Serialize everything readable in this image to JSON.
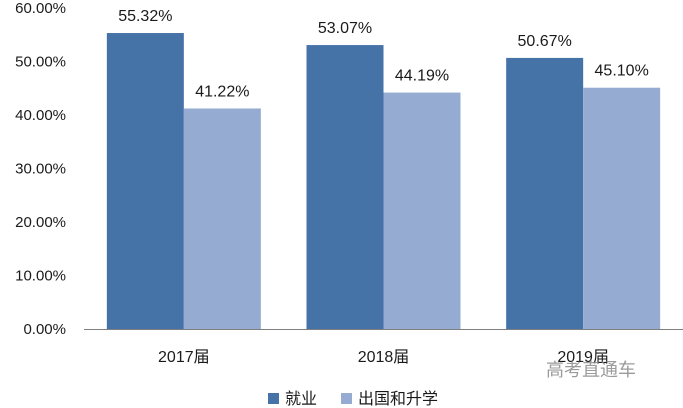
{
  "chart_data": {
    "type": "bar",
    "categories": [
      "2017届",
      "2018届",
      "2019届"
    ],
    "series": [
      {
        "name": "就业",
        "values": [
          55.32,
          53.07,
          50.67
        ],
        "labels": [
          "55.32%",
          "53.07%",
          "50.67%"
        ],
        "color": "#4572a7"
      },
      {
        "name": "出国和升学",
        "values": [
          41.22,
          44.19,
          45.1
        ],
        "labels": [
          "41.22%",
          "44.19%",
          "45.10%"
        ],
        "color": "#95abd1"
      }
    ],
    "ylim": [
      0,
      60
    ],
    "y_ticks": [
      0,
      10,
      20,
      30,
      40,
      50,
      60
    ],
    "y_tick_labels": [
      "0.00%",
      "10.00%",
      "20.00%",
      "30.00%",
      "40.00%",
      "50.00%",
      "60.00%"
    ],
    "grid": false,
    "legend_position": "bottom",
    "title": "",
    "xlabel": "",
    "ylabel": ""
  },
  "watermark": {
    "text": "高考直通车"
  }
}
